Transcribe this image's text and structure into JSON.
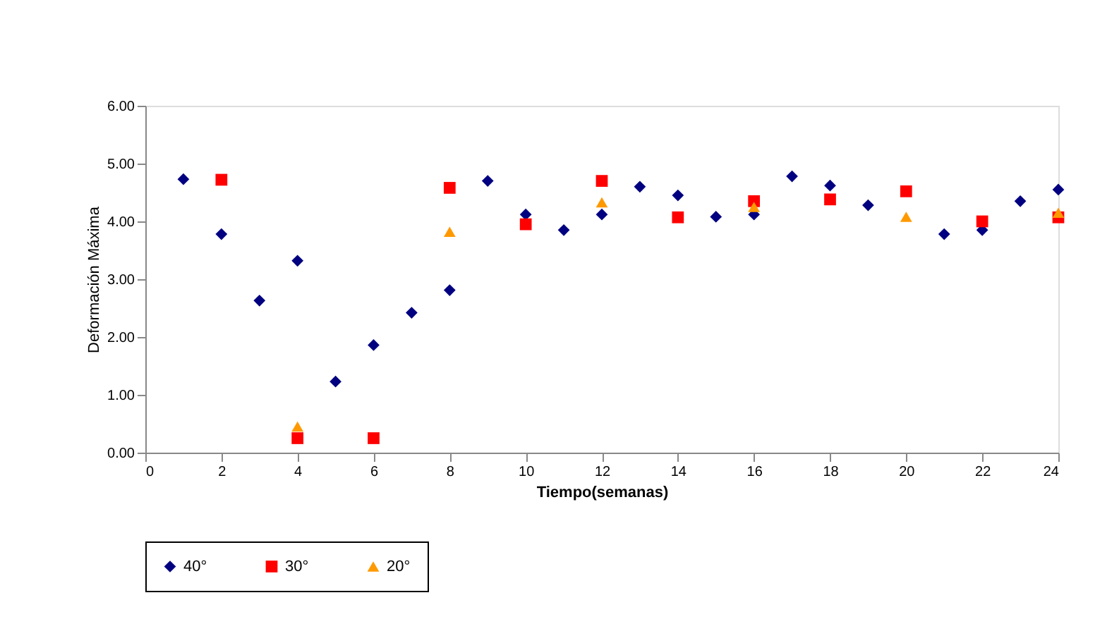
{
  "chart_data": {
    "type": "scatter",
    "xlabel": "Tiempo(semanas)",
    "ylabel": "Deformación Máxima",
    "xlim": [
      0,
      24
    ],
    "xticks": [
      0,
      2,
      4,
      6,
      8,
      10,
      12,
      14,
      16,
      18,
      20,
      22,
      24
    ],
    "ylim": [
      0,
      6
    ],
    "yticks": [
      {
        "value": 0,
        "label": "0.00"
      },
      {
        "value": 1,
        "label": "1.00"
      },
      {
        "value": 2,
        "label": "2.00"
      },
      {
        "value": 3,
        "label": "3.00"
      },
      {
        "value": 4,
        "label": "4.00"
      },
      {
        "value": 5,
        "label": "5.00"
      },
      {
        "value": 6,
        "label": "6.00"
      }
    ],
    "grid": false,
    "legend": "bottom",
    "series": [
      {
        "name": "40°",
        "color": "#000080",
        "marker": "diamond",
        "x": [
          1,
          2,
          3,
          4,
          5,
          6,
          7,
          8,
          9,
          10,
          11,
          12,
          13,
          14,
          15,
          16,
          17,
          18,
          19,
          20,
          21,
          22,
          23,
          24
        ],
        "values": [
          4.73,
          3.78,
          2.63,
          3.32,
          1.23,
          1.86,
          2.42,
          2.81,
          4.7,
          4.12,
          3.85,
          4.12,
          4.6,
          4.45,
          4.08,
          4.12,
          4.78,
          4.62,
          4.28,
          null,
          3.78,
          3.85,
          4.35,
          4.55
        ]
      },
      {
        "name": "30°",
        "color": "#ff0000",
        "marker": "square",
        "x": [
          2,
          4,
          6,
          8,
          10,
          12,
          14,
          16,
          18,
          20,
          22,
          24
        ],
        "values": [
          4.72,
          0.25,
          0.25,
          4.58,
          3.95,
          4.7,
          4.07,
          4.35,
          4.38,
          4.52,
          4.0,
          4.07
        ]
      },
      {
        "name": "20°",
        "color": "#ff9900",
        "marker": "triangle",
        "x": [
          4,
          8,
          12,
          16,
          20,
          24
        ],
        "values": [
          0.45,
          3.82,
          4.33,
          4.25,
          4.08,
          4.15
        ]
      }
    ]
  }
}
